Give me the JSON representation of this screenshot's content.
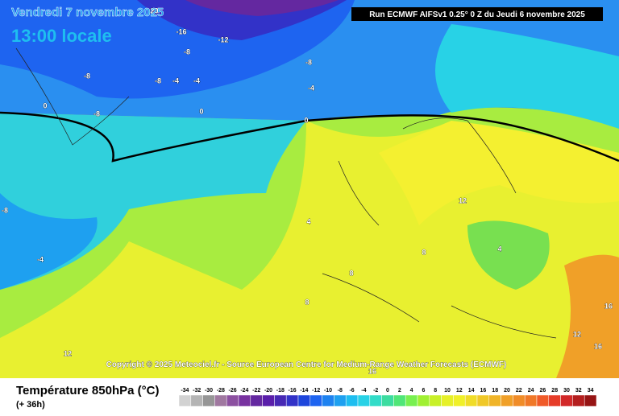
{
  "header": {
    "date": "Vendredi 7 novembre 2025",
    "time": "13:00 locale",
    "run": "Run ECMWF AIFSv1 0.25° 0 Z du Jeudi 6 novembre 2025"
  },
  "copyright": "Copyright © 2025 Meteociel.fr - Source European Centre for Medium-Range Weather Forecasts (ECMWF)",
  "contour_labels": [
    -20,
    -16,
    -12,
    -8,
    -8,
    -8,
    -8,
    -4,
    -4,
    0,
    -8,
    0,
    -4,
    0,
    -8,
    -4,
    4,
    12,
    8,
    4,
    8,
    8,
    16,
    12,
    16,
    12,
    16
  ],
  "legend": {
    "title": "Température 850hPa (°C)",
    "subtitle": "(+ 36h)",
    "ticks": [
      -34,
      -32,
      -30,
      -28,
      -26,
      -24,
      -22,
      -20,
      -18,
      -16,
      -14,
      -12,
      -10,
      -8,
      -6,
      -4,
      -2,
      0,
      2,
      4,
      6,
      8,
      10,
      12,
      14,
      16,
      18,
      20,
      22,
      24,
      26,
      28,
      30,
      32,
      34
    ],
    "colors": [
      "#d2d2d2",
      "#b4b4b4",
      "#969696",
      "#a078a0",
      "#8c50a0",
      "#7832a0",
      "#6428a0",
      "#5a1eaa",
      "#4628b4",
      "#3232c8",
      "#1e46dc",
      "#1e64f0",
      "#1e82f0",
      "#1ea0f0",
      "#1ebef0",
      "#28d2e6",
      "#32dcc8",
      "#3cdca0",
      "#50e678",
      "#78f050",
      "#a0f032",
      "#c8f028",
      "#e6f028",
      "#f0f028",
      "#f0dc28",
      "#f0c828",
      "#f0b428",
      "#f0a028",
      "#f08c28",
      "#f07828",
      "#f05a28",
      "#e63c28",
      "#d22828",
      "#b41e1e",
      "#961414"
    ]
  }
}
